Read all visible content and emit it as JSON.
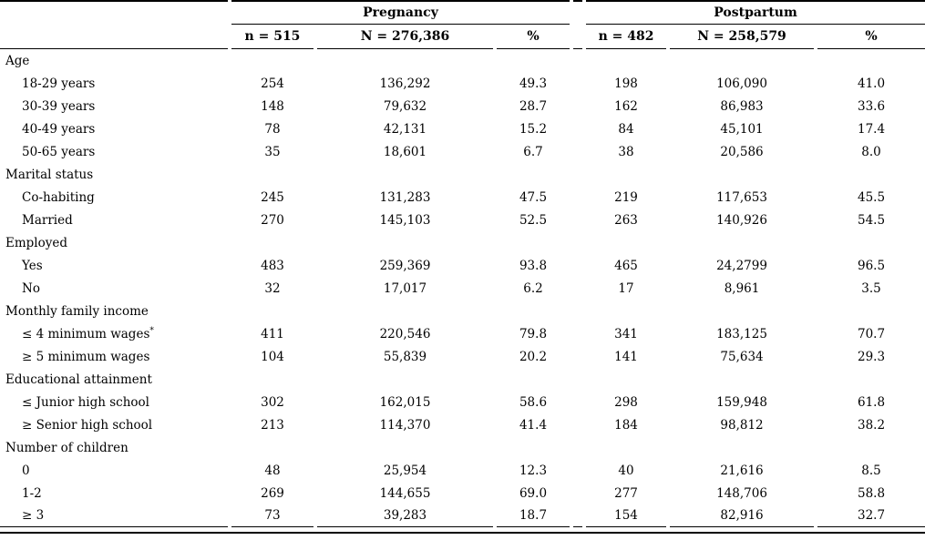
{
  "table": {
    "groups": [
      {
        "label": "Pregnancy",
        "columns": [
          "n = 515",
          "N = 276,386",
          "%"
        ]
      },
      {
        "label": "Postpartum",
        "columns": [
          "n = 482",
          "N = 258,579",
          "%"
        ]
      }
    ],
    "sections": [
      {
        "label": "Age",
        "rows": [
          {
            "label": "18-29 years",
            "sup": "",
            "pregnancy": [
              "254",
              "136,292",
              "49.3"
            ],
            "postpartum": [
              "198",
              "106,090",
              "41.0"
            ]
          },
          {
            "label": "30-39 years",
            "sup": "",
            "pregnancy": [
              "148",
              "79,632",
              "28.7"
            ],
            "postpartum": [
              "162",
              "86,983",
              "33.6"
            ]
          },
          {
            "label": "40-49 years",
            "sup": "",
            "pregnancy": [
              "78",
              "42,131",
              "15.2"
            ],
            "postpartum": [
              "84",
              "45,101",
              "17.4"
            ]
          },
          {
            "label": "50-65 years",
            "sup": "",
            "pregnancy": [
              "35",
              "18,601",
              "6.7"
            ],
            "postpartum": [
              "38",
              "20,586",
              "8.0"
            ]
          }
        ]
      },
      {
        "label": "Marital status",
        "rows": [
          {
            "label": "Co-habiting",
            "sup": "",
            "pregnancy": [
              "245",
              "131,283",
              "47.5"
            ],
            "postpartum": [
              "219",
              "117,653",
              "45.5"
            ]
          },
          {
            "label": "Married",
            "sup": "",
            "pregnancy": [
              "270",
              "145,103",
              "52.5"
            ],
            "postpartum": [
              "263",
              "140,926",
              "54.5"
            ]
          }
        ]
      },
      {
        "label": "Employed",
        "rows": [
          {
            "label": "Yes",
            "sup": "",
            "pregnancy": [
              "483",
              "259,369",
              "93.8"
            ],
            "postpartum": [
              "465",
              "24,2799",
              "96.5"
            ]
          },
          {
            "label": "No",
            "sup": "",
            "pregnancy": [
              "32",
              "17,017",
              "6.2"
            ],
            "postpartum": [
              "17",
              "8,961",
              "3.5"
            ]
          }
        ]
      },
      {
        "label": "Monthly family income",
        "rows": [
          {
            "label": "≤ 4 minimum wages",
            "sup": "*",
            "pregnancy": [
              "411",
              "220,546",
              "79.8"
            ],
            "postpartum": [
              "341",
              "183,125",
              "70.7"
            ]
          },
          {
            "label": "≥ 5 minimum wages",
            "sup": "",
            "pregnancy": [
              "104",
              "55,839",
              "20.2"
            ],
            "postpartum": [
              "141",
              "75,634",
              "29.3"
            ]
          }
        ]
      },
      {
        "label": "Educational attainment",
        "rows": [
          {
            "label": "≤ Junior high school",
            "sup": "",
            "pregnancy": [
              "302",
              "162,015",
              "58.6"
            ],
            "postpartum": [
              "298",
              "159,948",
              "61.8"
            ]
          },
          {
            "label": "≥ Senior high school",
            "sup": "",
            "pregnancy": [
              "213",
              "114,370",
              "41.4"
            ],
            "postpartum": [
              "184",
              "98,812",
              "38.2"
            ]
          }
        ]
      },
      {
        "label": "Number of children",
        "rows": [
          {
            "label": "0",
            "sup": "",
            "pregnancy": [
              "48",
              "25,954",
              "12.3"
            ],
            "postpartum": [
              "40",
              "21,616",
              "8.5"
            ]
          },
          {
            "label": "1-2",
            "sup": "",
            "pregnancy": [
              "269",
              "144,655",
              "69.0"
            ],
            "postpartum": [
              "277",
              "148,706",
              "58.8"
            ]
          },
          {
            "label": "≥ 3",
            "sup": "",
            "pregnancy": [
              "73",
              "39,283",
              "18.7"
            ],
            "postpartum": [
              "154",
              "82,916",
              "32.7"
            ]
          }
        ]
      }
    ]
  }
}
